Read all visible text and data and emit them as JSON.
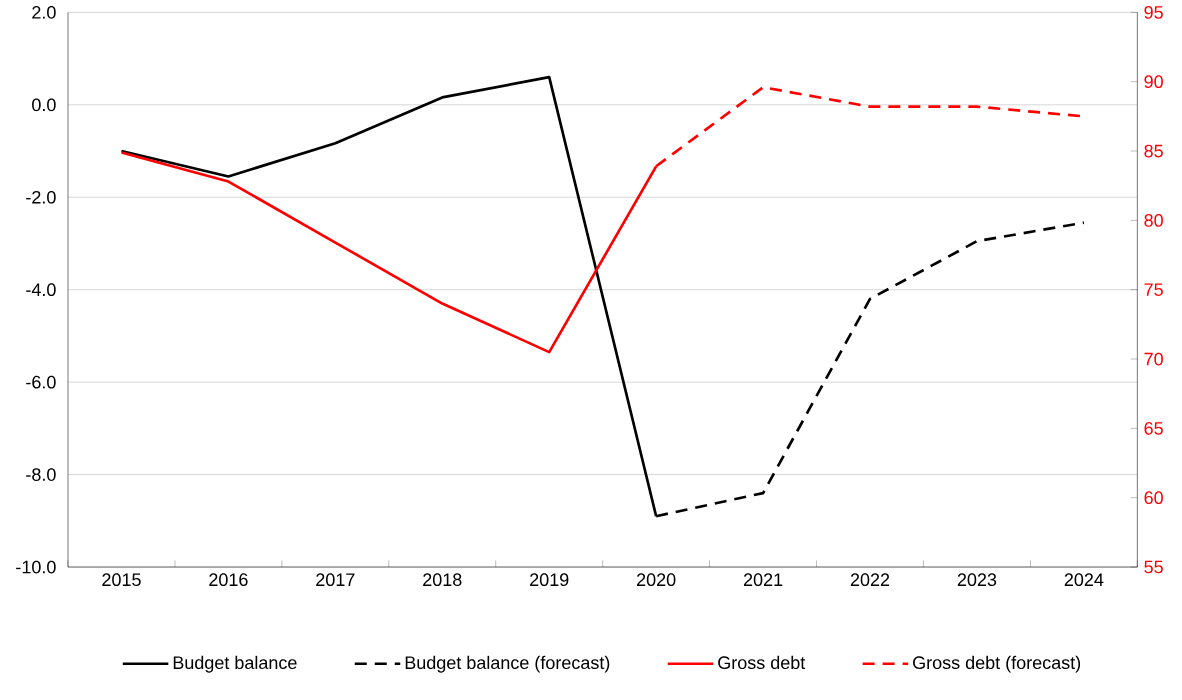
{
  "chart_data": {
    "type": "line",
    "categories": [
      "2015",
      "2016",
      "2017",
      "2018",
      "2019",
      "2020",
      "2021",
      "2022",
      "2023",
      "2024"
    ],
    "series": [
      {
        "name": "Budget balance",
        "color": "#000000",
        "line_style": "solid",
        "axis": "y",
        "values": [
          -1.0,
          -1.55,
          -0.83,
          0.16,
          0.6,
          -8.9,
          null,
          null,
          null,
          null
        ]
      },
      {
        "name": "Budget balance (forecast)",
        "color": "#000000",
        "line_style": "dashed",
        "axis": "y",
        "values": [
          null,
          null,
          null,
          null,
          null,
          -8.9,
          -8.4,
          -4.2,
          -2.95,
          -2.55
        ]
      },
      {
        "name": "Gross debt",
        "color": "#ff0000",
        "line_style": "solid",
        "axis": "y2",
        "values": [
          84.9,
          82.8,
          78.4,
          74.0,
          70.5,
          83.9,
          null,
          null,
          null,
          null
        ]
      },
      {
        "name": "Gross debt (forecast)",
        "color": "#ff0000",
        "line_style": "dashed",
        "axis": "y2",
        "values": [
          null,
          null,
          null,
          null,
          null,
          83.9,
          89.6,
          88.2,
          88.2,
          87.5
        ]
      }
    ],
    "ylim": [
      -10,
      2
    ],
    "yticks": [
      {
        "value": -10,
        "label": "-10.0"
      },
      {
        "value": -8,
        "label": "-8.0"
      },
      {
        "value": -6,
        "label": "-6.0"
      },
      {
        "value": -4,
        "label": "-4.0"
      },
      {
        "value": -2,
        "label": "-2.0"
      },
      {
        "value": 0,
        "label": "0.0"
      },
      {
        "value": 2,
        "label": "2.0"
      }
    ],
    "y2lim": [
      55,
      95
    ],
    "y2ticks": [
      55,
      60,
      65,
      70,
      75,
      80,
      85,
      90,
      95
    ],
    "grid": "y",
    "legend": "bottom",
    "marker": "none"
  }
}
